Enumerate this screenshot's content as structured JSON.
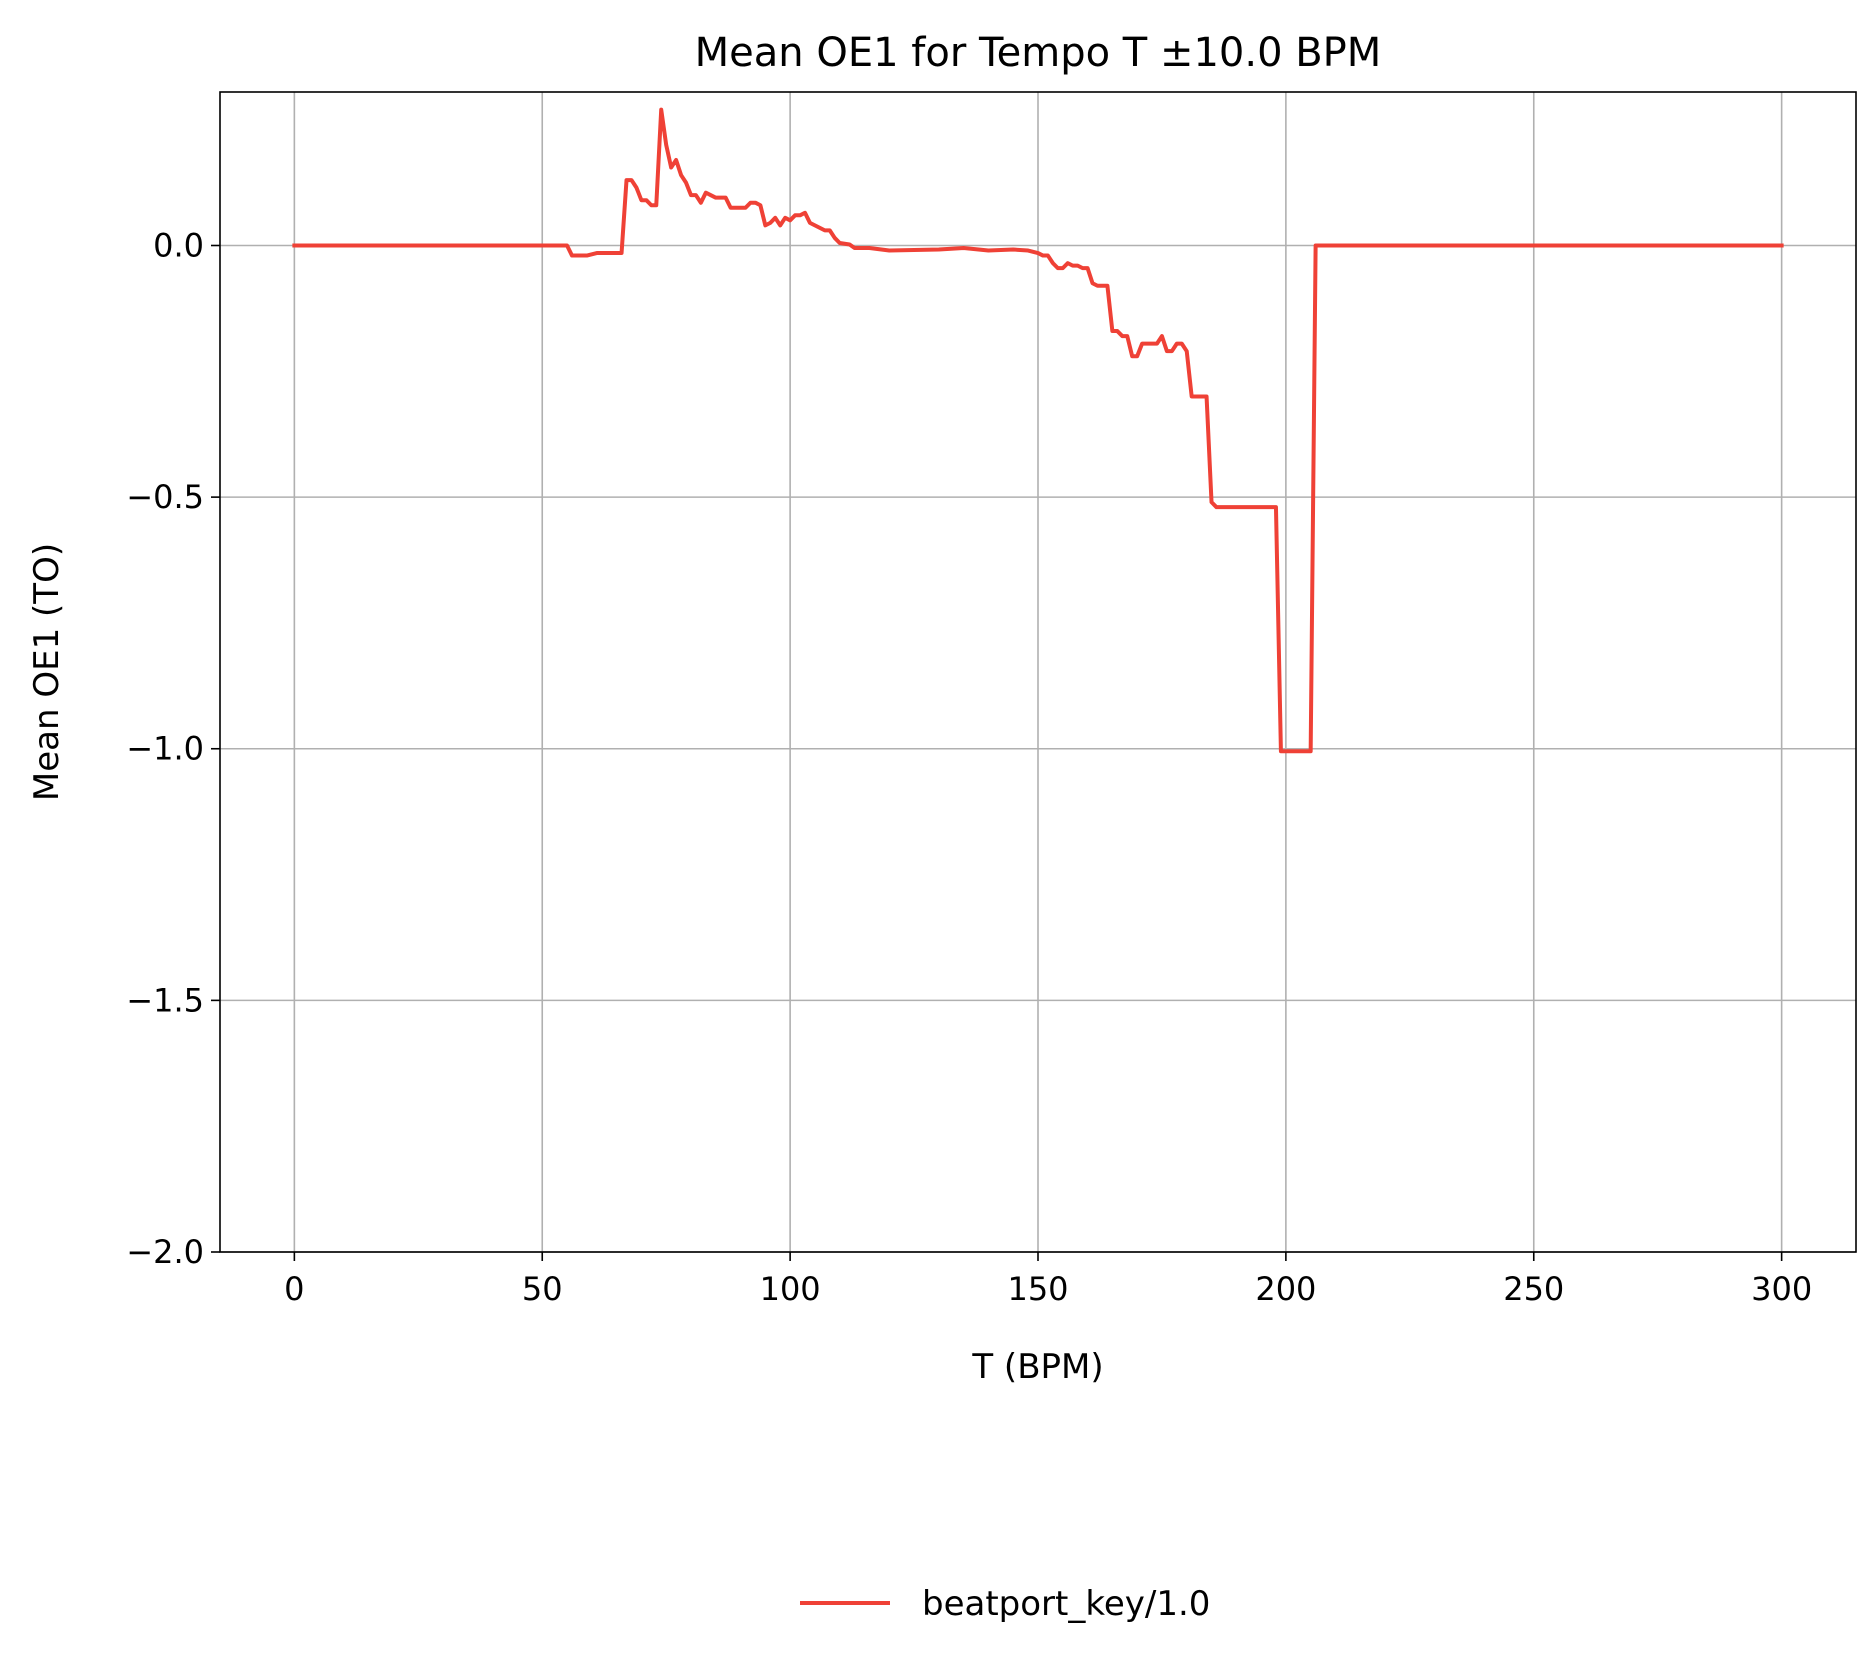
{
  "chart_data": {
    "type": "line",
    "title": "Mean OE1 for Tempo T ±10.0 BPM",
    "xlabel": "T (BPM)",
    "ylabel": "Mean OE1 (TO)",
    "xlim": [
      -15,
      315
    ],
    "ylim": [
      -2.0,
      0.305
    ],
    "xticks": [
      0,
      50,
      100,
      150,
      200,
      250,
      300
    ],
    "xtick_labels": [
      "0",
      "50",
      "100",
      "150",
      "200",
      "250",
      "300"
    ],
    "yticks": [
      0.0,
      -0.5,
      -1.0,
      -1.5,
      -2.0
    ],
    "ytick_labels": [
      "0.0",
      "−0.5",
      "−1.0",
      "−1.5",
      "−2.0"
    ],
    "grid": true,
    "legend_position": "bottom-center",
    "series": [
      {
        "name": "beatport_key/1.0",
        "color": "#ef4136",
        "x": [
          0,
          55,
          56,
          58,
          59,
          61,
          66,
          67,
          68,
          69,
          70,
          71,
          72,
          73,
          74,
          75,
          76,
          77,
          78,
          79,
          80,
          81,
          82,
          83,
          84,
          85,
          86,
          87,
          88,
          89,
          90,
          91,
          92,
          93,
          94,
          95,
          96,
          97,
          98,
          99,
          100,
          101,
          102,
          103,
          104,
          105,
          106,
          107,
          108,
          109,
          110,
          112,
          113,
          116,
          120,
          130,
          135,
          140,
          145,
          148,
          150,
          151,
          152,
          153,
          154,
          155,
          156,
          157,
          158,
          159,
          160,
          161,
          162,
          163,
          164,
          165,
          166,
          167,
          168,
          169,
          170,
          171,
          172,
          173,
          174,
          175,
          176,
          177,
          178,
          179,
          180,
          181,
          182,
          183,
          184,
          185,
          186,
          192,
          198,
          199,
          200,
          204,
          205,
          206,
          300
        ],
        "y": [
          0.0,
          0.0,
          -0.02,
          -0.02,
          -0.02,
          -0.015,
          -0.015,
          0.13,
          0.13,
          0.115,
          0.09,
          0.09,
          0.08,
          0.08,
          0.27,
          0.2,
          0.155,
          0.17,
          0.14,
          0.125,
          0.1,
          0.1,
          0.085,
          0.105,
          0.1,
          0.095,
          0.095,
          0.095,
          0.075,
          0.075,
          0.075,
          0.075,
          0.085,
          0.085,
          0.08,
          0.04,
          0.045,
          0.055,
          0.04,
          0.055,
          0.05,
          0.06,
          0.06,
          0.065,
          0.045,
          0.04,
          0.035,
          0.03,
          0.03,
          0.015,
          0.005,
          0.002,
          -0.005,
          -0.005,
          -0.01,
          -0.008,
          -0.005,
          -0.01,
          -0.008,
          -0.01,
          -0.015,
          -0.02,
          -0.02,
          -0.035,
          -0.045,
          -0.045,
          -0.035,
          -0.04,
          -0.04,
          -0.045,
          -0.045,
          -0.075,
          -0.08,
          -0.08,
          -0.08,
          -0.17,
          -0.17,
          -0.18,
          -0.18,
          -0.22,
          -0.22,
          -0.195,
          -0.195,
          -0.195,
          -0.195,
          -0.18,
          -0.21,
          -0.21,
          -0.195,
          -0.195,
          -0.21,
          -0.3,
          -0.3,
          -0.3,
          -0.3,
          -0.51,
          -0.52,
          -0.52,
          -0.52,
          -1.005,
          -1.005,
          -1.005,
          -1.005,
          0.0,
          0.0
        ]
      }
    ]
  }
}
